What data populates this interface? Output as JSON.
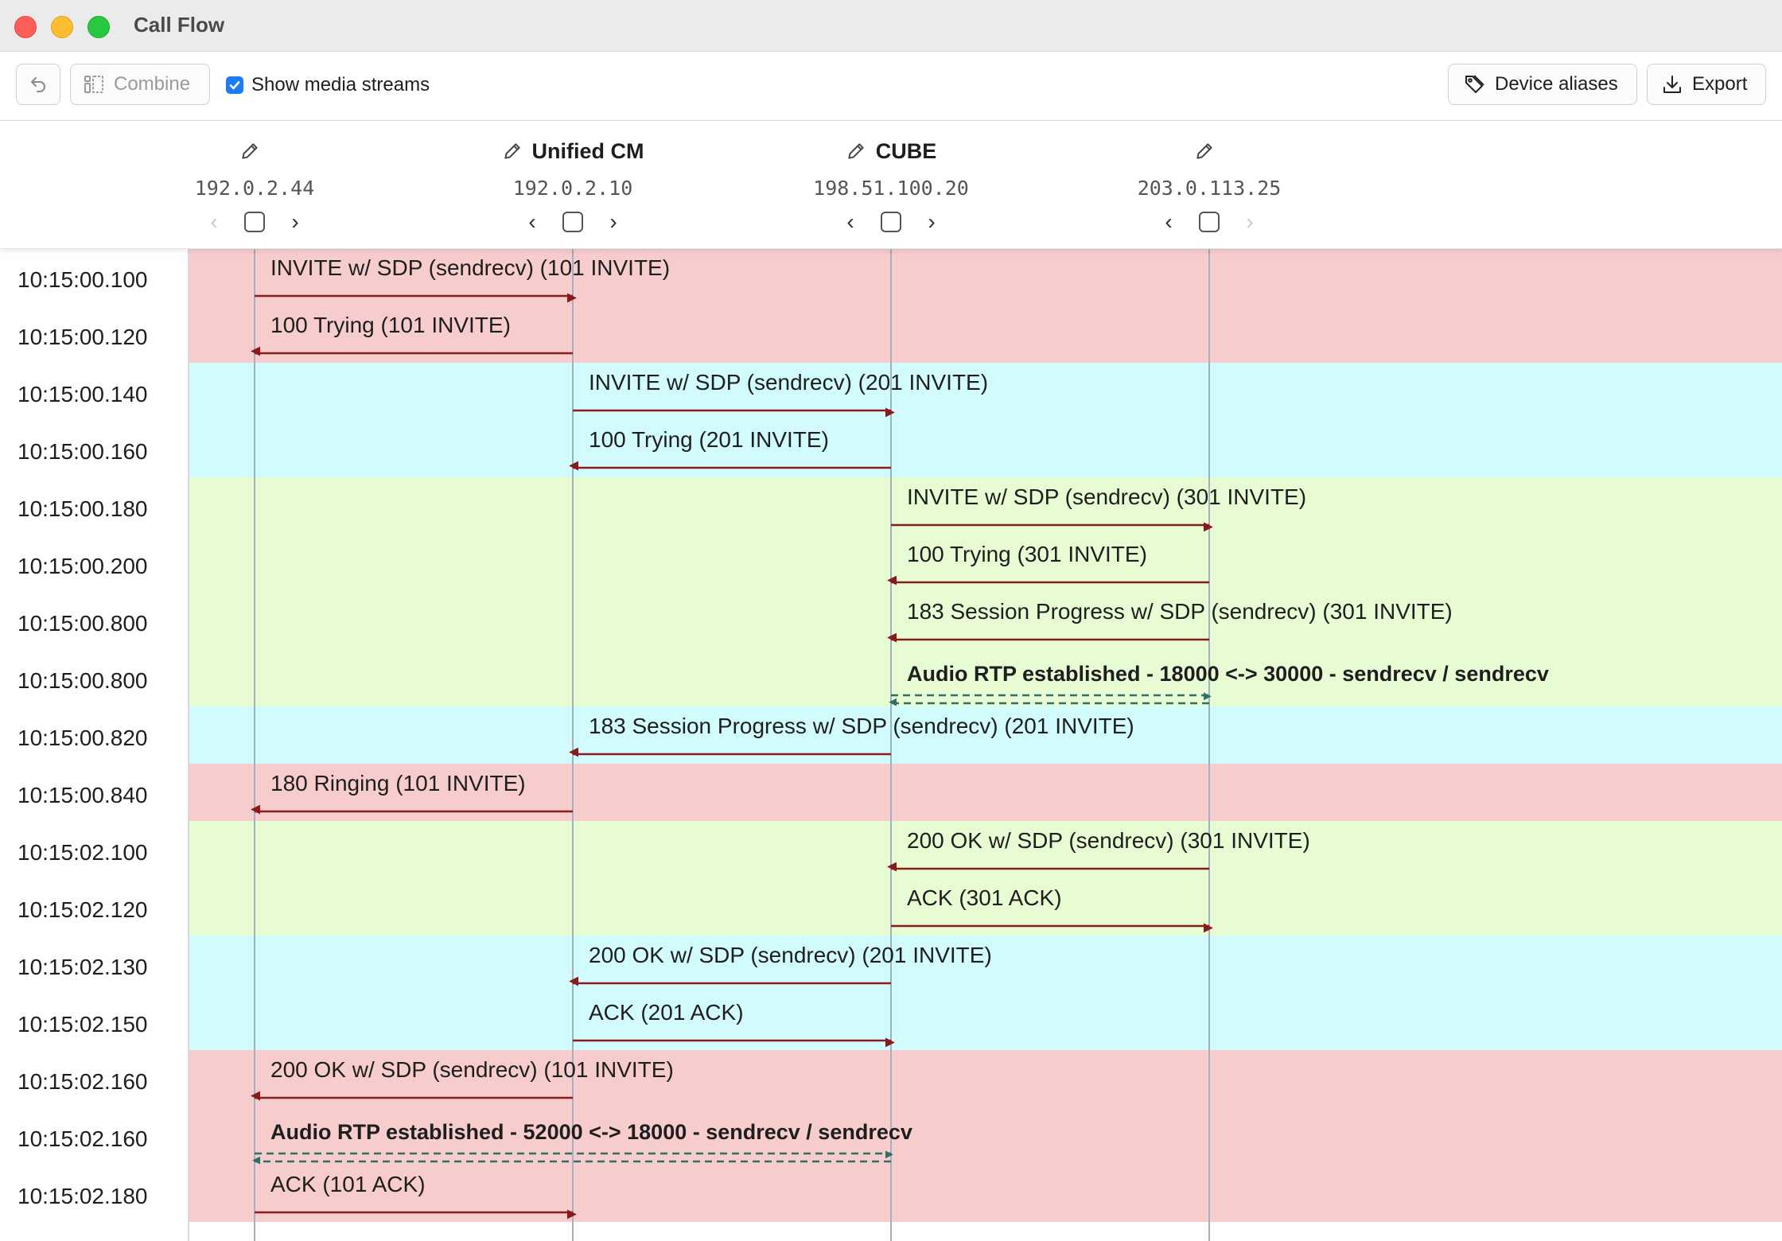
{
  "window": {
    "title": "Call Flow"
  },
  "toolbar": {
    "combine_label": "Combine",
    "show_media_label": "Show media streams",
    "show_media_checked": true,
    "aliases_label": "Device aliases",
    "export_label": "Export"
  },
  "devices": [
    {
      "name": "",
      "ip": "192.0.2.44",
      "prev_enabled": false,
      "next_enabled": true
    },
    {
      "name": "Unified CM",
      "ip": "192.0.2.10",
      "prev_enabled": true,
      "next_enabled": true
    },
    {
      "name": "CUBE",
      "ip": "198.51.100.20",
      "prev_enabled": true,
      "next_enabled": true
    },
    {
      "name": "",
      "ip": "203.0.113.25",
      "prev_enabled": true,
      "next_enabled": false
    }
  ],
  "colors": {
    "red_band": "#f6cccc",
    "cyan_band": "#d1fbfd",
    "green_band": "#e8fcd3",
    "signal_arrow": "#8b1a1a",
    "media_arrow": "#2f6f6a",
    "lifeline": "#9fb1c2"
  },
  "rows": [
    {
      "time": "10:15:00.100",
      "band": "red",
      "from": 0,
      "to": 1,
      "kind": "signal",
      "label": "INVITE w/ SDP (sendrecv) (101 INVITE)"
    },
    {
      "time": "10:15:00.120",
      "band": "red",
      "from": 1,
      "to": 0,
      "kind": "signal",
      "label": "100 Trying (101 INVITE)"
    },
    {
      "time": "10:15:00.140",
      "band": "cyan",
      "from": 1,
      "to": 2,
      "kind": "signal",
      "label": "INVITE w/ SDP (sendrecv) (201 INVITE)"
    },
    {
      "time": "10:15:00.160",
      "band": "cyan",
      "from": 2,
      "to": 1,
      "kind": "signal",
      "label": "100 Trying (201 INVITE)"
    },
    {
      "time": "10:15:00.180",
      "band": "green",
      "from": 2,
      "to": 3,
      "kind": "signal",
      "label": "INVITE w/ SDP (sendrecv) (301 INVITE)"
    },
    {
      "time": "10:15:00.200",
      "band": "green",
      "from": 3,
      "to": 2,
      "kind": "signal",
      "label": "100 Trying (301 INVITE)"
    },
    {
      "time": "10:15:00.800",
      "band": "green",
      "from": 3,
      "to": 2,
      "kind": "signal",
      "label": "183 Session Progress w/ SDP (sendrecv) (301 INVITE)"
    },
    {
      "time": "10:15:00.800",
      "band": "green",
      "from": 2,
      "to": 3,
      "kind": "media",
      "label": "Audio RTP established - 18000 <-> 30000 - sendrecv / sendrecv"
    },
    {
      "time": "10:15:00.820",
      "band": "cyan",
      "from": 2,
      "to": 1,
      "kind": "signal",
      "label": "183 Session Progress w/ SDP (sendrecv) (201 INVITE)"
    },
    {
      "time": "10:15:00.840",
      "band": "red",
      "from": 1,
      "to": 0,
      "kind": "signal",
      "label": "180 Ringing (101 INVITE)"
    },
    {
      "time": "10:15:02.100",
      "band": "green",
      "from": 3,
      "to": 2,
      "kind": "signal",
      "label": "200 OK w/ SDP (sendrecv) (301 INVITE)"
    },
    {
      "time": "10:15:02.120",
      "band": "green",
      "from": 2,
      "to": 3,
      "kind": "signal",
      "label": "ACK (301 ACK)"
    },
    {
      "time": "10:15:02.130",
      "band": "cyan",
      "from": 2,
      "to": 1,
      "kind": "signal",
      "label": "200 OK w/ SDP (sendrecv) (201 INVITE)"
    },
    {
      "time": "10:15:02.150",
      "band": "cyan",
      "from": 1,
      "to": 2,
      "kind": "signal",
      "label": "ACK (201 ACK)"
    },
    {
      "time": "10:15:02.160",
      "band": "red",
      "from": 1,
      "to": 0,
      "kind": "signal",
      "label": "200 OK w/ SDP (sendrecv) (101 INVITE)"
    },
    {
      "time": "10:15:02.160",
      "band": "red",
      "from": 0,
      "to": 2,
      "kind": "media",
      "label": "Audio RTP established - 52000 <-> 18000 - sendrecv / sendrecv"
    },
    {
      "time": "10:15:02.180",
      "band": "red",
      "from": 0,
      "to": 1,
      "kind": "signal",
      "label": "ACK (101 ACK)"
    }
  ]
}
